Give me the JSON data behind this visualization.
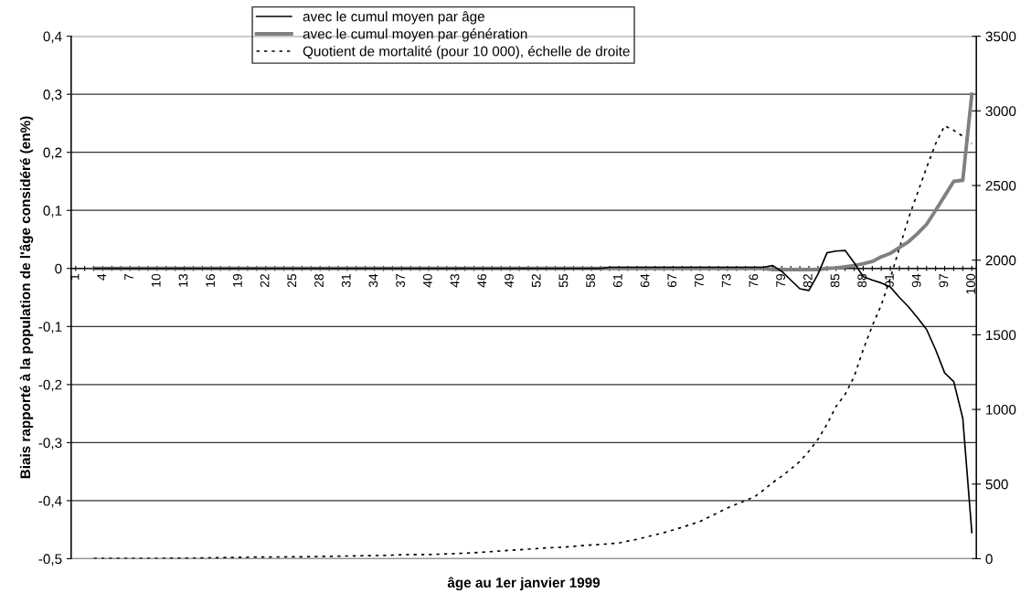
{
  "chart_data": {
    "type": "line",
    "xlabel": "âge au 1er janvier 1999",
    "ylabel": "Biais rapporté à la population de l'âge considéré (en%)",
    "categories": [
      "1",
      null,
      null,
      "4",
      null,
      null,
      "7",
      null,
      null,
      "10",
      null,
      null,
      "13",
      null,
      null,
      "16",
      null,
      null,
      "19",
      null,
      null,
      "22",
      null,
      null,
      "25",
      null,
      null,
      "28",
      null,
      null,
      "31",
      null,
      null,
      "34",
      null,
      null,
      "37",
      null,
      null,
      "40",
      null,
      null,
      "43",
      null,
      null,
      "46",
      null,
      null,
      "49",
      null,
      null,
      "52",
      null,
      null,
      "55",
      null,
      null,
      "58",
      null,
      null,
      "61",
      null,
      null,
      "64",
      null,
      null,
      "67",
      null,
      null,
      "70",
      null,
      null,
      "73",
      null,
      null,
      "76",
      null,
      null,
      "79",
      null,
      null,
      "82",
      null,
      null,
      "85",
      null,
      null,
      "88",
      null,
      null,
      "91",
      null,
      null,
      "94",
      null,
      null,
      "97",
      null,
      null,
      "100"
    ],
    "series": [
      {
        "name": "avec le cumul moyen par âge",
        "color": "#000000",
        "line_style": "solid",
        "values": [
          null,
          null,
          0,
          0,
          0,
          0,
          0,
          0,
          0,
          0,
          0,
          0,
          0,
          0,
          0,
          0,
          0,
          0,
          0,
          0,
          0,
          0,
          0,
          0,
          0,
          0,
          0,
          0,
          0,
          0,
          0,
          0,
          0,
          0,
          0,
          0,
          0,
          0,
          0,
          0,
          0,
          0,
          0,
          0,
          0,
          0,
          0,
          0,
          0,
          0,
          0,
          0,
          0,
          0,
          0,
          0,
          0,
          0,
          0,
          0.002,
          0.002,
          0.002,
          0.002,
          0.002,
          0.002,
          0.002,
          0.002,
          0.002,
          0.002,
          0.002,
          0.002,
          0.002,
          0.002,
          0.002,
          0.002,
          0.002,
          0.002,
          0.005,
          -0.005,
          -0.02,
          -0.035,
          -0.038,
          -0.01,
          0.027,
          0.03,
          0.031,
          0.01,
          -0.014,
          -0.02,
          -0.025,
          -0.032,
          -0.05,
          -0.066,
          -0.085,
          -0.105,
          -0.14,
          -0.18,
          -0.195,
          -0.258,
          -0.455
        ]
      },
      {
        "name": "avec le cumul moyen par génération",
        "color": "#808080",
        "line_style": "solid",
        "values": [
          null,
          null,
          0,
          0,
          0,
          0,
          0,
          0,
          0,
          0,
          0,
          0,
          0,
          0,
          0,
          0,
          0,
          0,
          0,
          0,
          0,
          0,
          0,
          0,
          0,
          0,
          0,
          0,
          0,
          0,
          0,
          0,
          0,
          0,
          0,
          0,
          0,
          0,
          0,
          0,
          0,
          0,
          0,
          0,
          0,
          0,
          0,
          0,
          0,
          0,
          0,
          0,
          0,
          0,
          0,
          0,
          0,
          0,
          0,
          0,
          0,
          0,
          0,
          0,
          0,
          0,
          0,
          0,
          0,
          0,
          0,
          0,
          0,
          0,
          0,
          0,
          0,
          -0.002,
          -0.002,
          -0.002,
          -0.002,
          -0.002,
          -0.002,
          0,
          0.001,
          0.003,
          0.005,
          0.008,
          0.012,
          0.02,
          0.026,
          0.036,
          0.046,
          0.06,
          0.076,
          0.1,
          0.125,
          0.15,
          0.152,
          0.3
        ]
      },
      {
        "name": "Quotient de mortalité (pour 10 000), échelle de droite",
        "color": "#000000",
        "line_style": "dotted",
        "axis": "y2",
        "values": [
          null,
          null,
          2,
          2,
          2,
          2,
          2,
          2,
          2,
          2,
          3,
          3,
          3,
          4,
          5,
          6,
          7,
          8,
          9,
          10,
          11,
          11,
          12,
          12,
          13,
          13,
          14,
          15,
          16,
          17,
          18,
          19,
          20,
          21,
          22,
          24,
          26,
          28,
          28,
          28,
          30,
          32,
          34,
          37,
          40,
          44,
          48,
          52,
          56,
          60,
          64,
          68,
          72,
          75,
          78,
          83,
          88,
          92,
          96,
          100,
          105,
          118,
          130,
          145,
          160,
          175,
          192,
          211,
          230,
          250,
          280,
          310,
          340,
          365,
          390,
          415,
          460,
          510,
          553,
          600,
          652,
          720,
          800,
          900,
          1020,
          1100,
          1220,
          1400,
          1560,
          1700,
          1880,
          2080,
          2280,
          2450,
          2620,
          2780,
          2900,
          2870,
          2830,
          2780
        ]
      }
    ],
    "ylim": [
      -0.5,
      0.4
    ],
    "yticks": [
      {
        "value": -0.5,
        "label": "-0,5"
      },
      {
        "value": -0.4,
        "label": "-0,4"
      },
      {
        "value": -0.3,
        "label": "-0,3"
      },
      {
        "value": -0.2,
        "label": "-0,2"
      },
      {
        "value": -0.1,
        "label": "-0,1"
      },
      0,
      {
        "value": 0.1,
        "label": "0,1"
      },
      {
        "value": 0.2,
        "label": "0,2"
      },
      {
        "value": 0.3,
        "label": "0,3"
      },
      {
        "value": 0.4,
        "label": "0,4"
      }
    ],
    "y2lim": [
      0,
      3500
    ],
    "y2ticks": [
      0,
      500,
      1000,
      1500,
      2000,
      2500,
      3000,
      3500
    ],
    "grid": "y",
    "legend": "top"
  }
}
